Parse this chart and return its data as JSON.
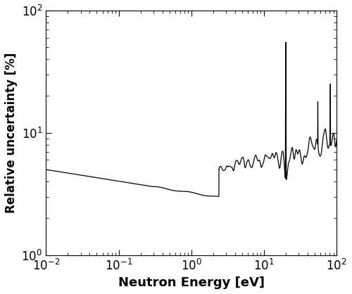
{
  "xlabel": "Neutron Energy [eV]",
  "ylabel": "Relative uncertainty [%]",
  "xlim_log": [
    -2,
    2
  ],
  "ylim_log": [
    0,
    2
  ],
  "line_color": "#000000",
  "line_width": 0.9,
  "background_color": "#ffffff",
  "tick_fontsize": 12,
  "label_fontsize": 13
}
